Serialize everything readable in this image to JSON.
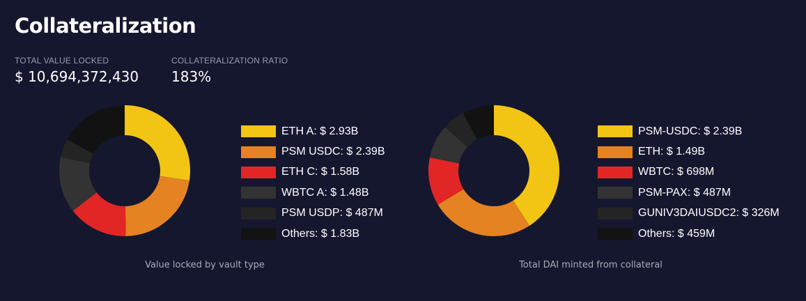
{
  "page": {
    "title": "Collateralization"
  },
  "stats": {
    "tvl_label": "TOTAL VALUE LOCKED",
    "tvl_value": "$ 10,694,372,430",
    "ratio_label": "COLLATERALIZATION RATIO",
    "ratio_value": "183%"
  },
  "chart_data": [
    {
      "type": "pie",
      "title": "Value locked by vault type",
      "categories": [
        "ETH A",
        "PSM USDC",
        "ETH C",
        "WBTC A",
        "PSM USDP",
        "Others"
      ],
      "values": [
        2.93,
        2.39,
        1.58,
        1.48,
        0.487,
        1.83
      ],
      "labels": [
        "ETH A: $ 2.93B",
        "PSM USDC: $ 2.39B",
        "ETH C: $ 1.58B",
        "WBTC A: $ 1.48B",
        "PSM USDP: $ 487M",
        "Others: $ 1.83B"
      ],
      "colors": [
        "#f2c514",
        "#e58222",
        "#e22625",
        "#333333",
        "#242424",
        "#121212"
      ],
      "legend_position": "right",
      "shape": "donut"
    },
    {
      "type": "pie",
      "title": "Total DAI minted from collateral",
      "categories": [
        "PSM-USDC",
        "ETH",
        "WBTC",
        "PSM-PAX",
        "GUNIV3DAIUSDC2",
        "Others"
      ],
      "values": [
        2.39,
        1.49,
        0.698,
        0.487,
        0.326,
        0.459
      ],
      "labels": [
        "PSM-USDC: $ 2.39B",
        "ETH: $ 1.49B",
        "WBTC: $ 698M",
        "PSM-PAX: $ 487M",
        "GUNIV3DAIUSDC2: $ 326M",
        "Others: $ 459M"
      ],
      "colors": [
        "#f2c514",
        "#e58222",
        "#e22625",
        "#333333",
        "#242424",
        "#121212"
      ],
      "legend_position": "right",
      "shape": "donut"
    }
  ]
}
